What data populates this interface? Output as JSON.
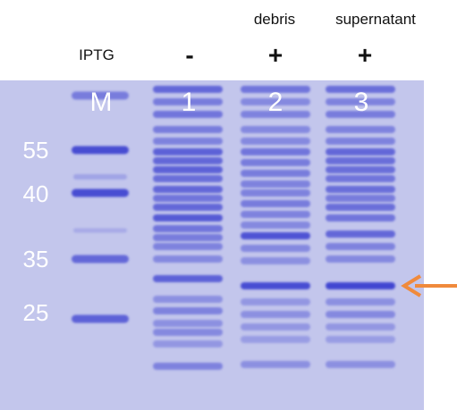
{
  "header": {
    "condition_label": "IPTG",
    "fraction_labels": [
      "debris",
      "supernatant"
    ],
    "induction_signs": [
      "-",
      "+",
      "+"
    ]
  },
  "gel": {
    "lane_labels": [
      "M",
      "1",
      "2",
      "3"
    ],
    "marker_sizes": [
      "55",
      "40",
      "35",
      "25"
    ],
    "colors": {
      "background": "#c3c6ec",
      "band": "#3b3fd0",
      "label_text": "#ffffff",
      "arrow": "#f08a3c"
    }
  }
}
